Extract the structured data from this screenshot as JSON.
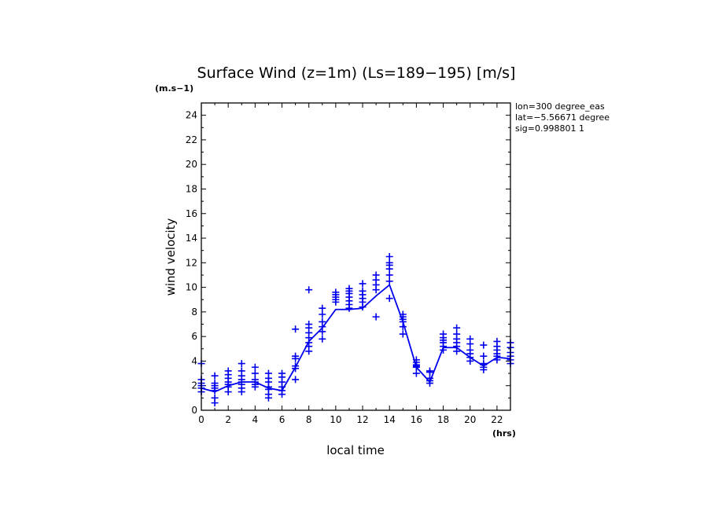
{
  "chart_data": {
    "type": "line",
    "title": "Surface Wind (z=1m) (Ls=189−195) [m/s]",
    "unit_label": "(m.s−1)",
    "xlabel": "local time",
    "xunit": "(hrs)",
    "ylabel": "wind velocity",
    "xlim": [
      0,
      23
    ],
    "ylim": [
      0,
      25
    ],
    "x_ticks": [
      "0",
      "2",
      "4",
      "6",
      "8",
      "10",
      "12",
      "14",
      "16",
      "18",
      "20",
      "22"
    ],
    "y_ticks": [
      "0",
      "2",
      "4",
      "6",
      "8",
      "10",
      "12",
      "14",
      "16",
      "18",
      "20",
      "22",
      "24"
    ],
    "info": [
      "lon=300 degree_eas",
      "lat=−5.56671 degree",
      "sig=0.998801 1"
    ],
    "color": "#0000ee",
    "mean_line": {
      "x": [
        0,
        1,
        2,
        3,
        4,
        5,
        6,
        7,
        8,
        9,
        10,
        11,
        12,
        13,
        14,
        15,
        16,
        17,
        18,
        19,
        20,
        21,
        22,
        23
      ],
      "y": [
        1.8,
        1.5,
        2.0,
        2.3,
        2.3,
        1.8,
        1.6,
        3.5,
        5.6,
        6.7,
        8.2,
        8.2,
        8.3,
        9.3,
        10.2,
        7.2,
        3.5,
        2.3,
        5.1,
        5.1,
        4.3,
        3.6,
        4.3,
        4.2
      ]
    },
    "scatter": [
      {
        "x": 0,
        "y": [
          1.5,
          1.8,
          2.0,
          2.2,
          2.5,
          3.8
        ]
      },
      {
        "x": 1,
        "y": [
          0.6,
          1.0,
          1.6,
          1.8,
          2.0,
          2.2,
          2.8
        ]
      },
      {
        "x": 2,
        "y": [
          1.5,
          1.9,
          2.1,
          2.3,
          2.6,
          2.9,
          3.2
        ]
      },
      {
        "x": 3,
        "y": [
          1.5,
          1.8,
          2.1,
          2.3,
          2.5,
          2.8,
          3.2,
          3.8
        ]
      },
      {
        "x": 4,
        "y": [
          1.9,
          2.1,
          2.3,
          2.5,
          3.0,
          3.5
        ]
      },
      {
        "x": 5,
        "y": [
          1.0,
          1.3,
          1.7,
          1.9,
          2.3,
          2.6,
          3.0
        ]
      },
      {
        "x": 6,
        "y": [
          1.3,
          1.6,
          1.9,
          2.3,
          2.7,
          3.0
        ]
      },
      {
        "x": 7,
        "y": [
          2.5,
          3.4,
          3.6,
          4.2,
          4.4,
          6.6
        ]
      },
      {
        "x": 8,
        "y": [
          4.8,
          5.2,
          5.5,
          5.9,
          6.3,
          6.7,
          7.0,
          9.8
        ]
      },
      {
        "x": 9,
        "y": [
          5.8,
          6.4,
          6.8,
          7.2,
          7.8,
          8.3
        ]
      },
      {
        "x": 10,
        "y": [
          8.8,
          9.0,
          9.2,
          9.4,
          9.6
        ]
      },
      {
        "x": 11,
        "y": [
          8.3,
          8.6,
          8.9,
          9.2,
          9.5,
          9.7,
          9.9
        ]
      },
      {
        "x": 12,
        "y": [
          8.4,
          8.8,
          9.1,
          9.4,
          9.7,
          10.3
        ]
      },
      {
        "x": 13,
        "y": [
          7.6,
          9.8,
          10.2,
          10.6,
          11.0
        ]
      },
      {
        "x": 14,
        "y": [
          9.1,
          10.5,
          11.0,
          11.5,
          11.8,
          12.0,
          12.5
        ]
      },
      {
        "x": 15,
        "y": [
          6.2,
          6.8,
          7.2,
          7.4,
          7.6,
          7.8
        ]
      },
      {
        "x": 16,
        "y": [
          3.0,
          3.5,
          3.6,
          3.7,
          3.9,
          4.1
        ]
      },
      {
        "x": 17,
        "y": [
          2.2,
          2.4,
          2.6,
          3.1,
          3.2
        ]
      },
      {
        "x": 18,
        "y": [
          4.9,
          5.2,
          5.5,
          5.7,
          5.9,
          6.2
        ]
      },
      {
        "x": 19,
        "y": [
          4.8,
          5.2,
          5.5,
          5.8,
          6.2,
          6.7
        ]
      },
      {
        "x": 20,
        "y": [
          4.0,
          4.3,
          4.6,
          4.9,
          5.4,
          5.8
        ]
      },
      {
        "x": 21,
        "y": [
          3.3,
          3.5,
          3.7,
          3.8,
          4.4,
          5.3
        ]
      },
      {
        "x": 22,
        "y": [
          4.1,
          4.4,
          4.6,
          4.9,
          5.2,
          5.6
        ]
      },
      {
        "x": 23,
        "y": [
          3.8,
          4.1,
          4.4,
          4.7,
          5.1,
          5.5
        ]
      }
    ]
  }
}
